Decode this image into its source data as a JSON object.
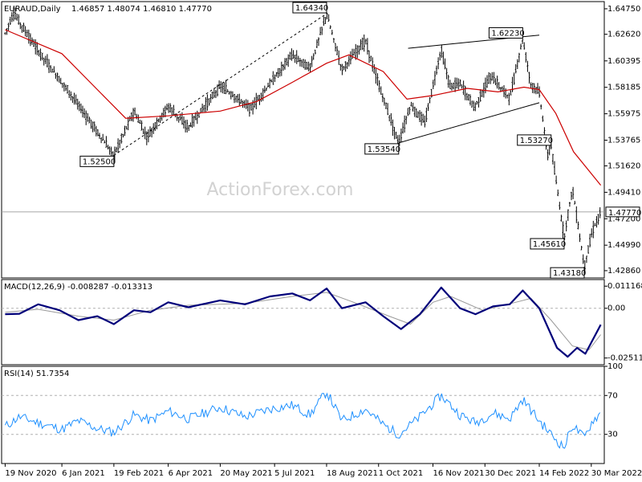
{
  "chart_data": [
    {
      "type": "candlestick",
      "title": "EURAUD,Daily",
      "ohlc_header": "1.46857 1.48074 1.46810 1.47770",
      "watermark": "ActionForex.com",
      "ylim": [
        1.4225,
        1.6535
      ],
      "yticks": [
        1.6475,
        1.6262,
        1.60395,
        1.58185,
        1.55975,
        1.53765,
        1.5162,
        1.4941,
        1.472,
        1.4499,
        1.4286
      ],
      "ytick_labels": [
        "1.64750",
        "1.62620",
        "1.60395",
        "1.58185",
        "1.55975",
        "1.53765",
        "1.51620",
        "1.49410",
        "1.47200",
        "1.44990",
        "1.42860"
      ],
      "current_price": 1.4777,
      "current_price_label": "1.47770",
      "x_dates": [
        "19 Nov 2020",
        "6 Jan 2021",
        "19 Feb 2021",
        "6 Apr 2021",
        "20 May 2021",
        "5 Jul 2021",
        "18 Aug 2021",
        "1 Oct 2021",
        "16 Nov 2021",
        "30 Dec 2021",
        "14 Feb 2022",
        "30 Mar 2022"
      ],
      "pivots": [
        {
          "date": "2020-11-19",
          "value": 1.627
        },
        {
          "date": "2020-11-26",
          "value": 1.644
        },
        {
          "date": "2020-12-17",
          "value": 1.612
        },
        {
          "date": "2021-01-12",
          "value": 1.578
        },
        {
          "date": "2021-02-19",
          "value": 1.525
        },
        {
          "date": "2021-03-08",
          "value": 1.562
        },
        {
          "date": "2021-03-19",
          "value": 1.54
        },
        {
          "date": "2021-04-06",
          "value": 1.566
        },
        {
          "date": "2021-04-23",
          "value": 1.548
        },
        {
          "date": "2021-05-20",
          "value": 1.583
        },
        {
          "date": "2021-06-15",
          "value": 1.564
        },
        {
          "date": "2021-07-05",
          "value": 1.59
        },
        {
          "date": "2021-07-20",
          "value": 1.609
        },
        {
          "date": "2021-08-04",
          "value": 1.598
        },
        {
          "date": "2021-08-18",
          "value": 1.6434
        },
        {
          "date": "2021-08-31",
          "value": 1.597
        },
        {
          "date": "2021-09-20",
          "value": 1.621
        },
        {
          "date": "2021-09-28",
          "value": 1.593
        },
        {
          "date": "2021-10-18",
          "value": 1.5354
        },
        {
          "date": "2021-10-28",
          "value": 1.567
        },
        {
          "date": "2021-11-09",
          "value": 1.552
        },
        {
          "date": "2021-11-23",
          "value": 1.614
        },
        {
          "date": "2021-11-30",
          "value": 1.583
        },
        {
          "date": "2021-12-09",
          "value": 1.585
        },
        {
          "date": "2021-12-21",
          "value": 1.565
        },
        {
          "date": "2022-01-04",
          "value": 1.591
        },
        {
          "date": "2022-01-20",
          "value": 1.573
        },
        {
          "date": "2022-01-31",
          "value": 1.6223
        },
        {
          "date": "2022-02-07",
          "value": 1.584
        },
        {
          "date": "2022-02-14",
          "value": 1.578
        },
        {
          "date": "2022-02-21",
          "value": 1.525
        },
        {
          "date": "2022-02-24",
          "value": 1.5327
        },
        {
          "date": "2022-03-07",
          "value": 1.4561
        },
        {
          "date": "2022-03-14",
          "value": 1.498
        },
        {
          "date": "2022-03-21",
          "value": 1.452
        },
        {
          "date": "2022-03-24",
          "value": 1.4318
        },
        {
          "date": "2022-03-31",
          "value": 1.462
        },
        {
          "date": "2022-04-07",
          "value": 1.4777
        }
      ],
      "moving_average": [
        {
          "date": "2020-11-19",
          "value": 1.63
        },
        {
          "date": "2021-01-06",
          "value": 1.61
        },
        {
          "date": "2021-02-10",
          "value": 1.575
        },
        {
          "date": "2021-03-01",
          "value": 1.556
        },
        {
          "date": "2021-04-06",
          "value": 1.558
        },
        {
          "date": "2021-05-20",
          "value": 1.562
        },
        {
          "date": "2021-06-20",
          "value": 1.57
        },
        {
          "date": "2021-07-20",
          "value": 1.586
        },
        {
          "date": "2021-08-18",
          "value": 1.602
        },
        {
          "date": "2021-09-06",
          "value": 1.609
        },
        {
          "date": "2021-10-05",
          "value": 1.595
        },
        {
          "date": "2021-10-25",
          "value": 1.572
        },
        {
          "date": "2021-11-16",
          "value": 1.575
        },
        {
          "date": "2021-12-15",
          "value": 1.581
        },
        {
          "date": "2022-01-10",
          "value": 1.578
        },
        {
          "date": "2022-02-01",
          "value": 1.582
        },
        {
          "date": "2022-02-14",
          "value": 1.58
        },
        {
          "date": "2022-02-28",
          "value": 1.56
        },
        {
          "date": "2022-03-15",
          "value": 1.528
        },
        {
          "date": "2022-04-07",
          "value": 1.5
        }
      ],
      "trendlines": [
        {
          "style": "dashed",
          "points": [
            {
              "date": "2021-02-19",
              "value": 1.525
            },
            {
              "date": "2021-08-18",
              "value": 1.6434
            }
          ]
        },
        {
          "style": "solid",
          "points": [
            {
              "date": "2021-10-26",
              "value": 1.6145
            },
            {
              "date": "2022-02-14",
              "value": 1.6255
            }
          ]
        },
        {
          "style": "solid",
          "points": [
            {
              "date": "2021-10-18",
              "value": 1.5354
            },
            {
              "date": "2022-02-14",
              "value": 1.569
            }
          ]
        }
      ],
      "annotations": [
        {
          "label": "1.64340",
          "date": "2021-08-18",
          "value": 1.6434,
          "anchor": "end",
          "side": "top"
        },
        {
          "label": "1.52500",
          "date": "2021-02-19",
          "value": 1.525,
          "anchor": "end",
          "side": "bottom"
        },
        {
          "label": "1.53540",
          "date": "2021-10-18",
          "value": 1.5354,
          "anchor": "end",
          "side": "bottom"
        },
        {
          "label": "1.62230",
          "date": "2022-01-31",
          "value": 1.6223,
          "anchor": "end",
          "side": "top"
        },
        {
          "label": "1.53270",
          "date": "2022-02-24",
          "value": 1.5327,
          "anchor": "end",
          "side": "top"
        },
        {
          "label": "1.45610",
          "date": "2022-03-07",
          "value": 1.4561,
          "anchor": "end",
          "side": "bottom"
        },
        {
          "label": "1.43180",
          "date": "2022-03-24",
          "value": 1.4318,
          "anchor": "end",
          "side": "bottom"
        }
      ],
      "colors": {
        "price": "#000000",
        "moving_average": "#cc0000",
        "current_price_line": "#9a9a9a"
      }
    },
    {
      "type": "line",
      "title": "MACD(12,26,9) -0.008287 -0.013313",
      "ylim": [
        -0.0285,
        0.0145
      ],
      "yticks": [
        0.011168,
        0.0,
        -0.025117
      ],
      "ytick_labels": [
        "0.011168",
        "0.00",
        "-0.025117"
      ],
      "series": [
        {
          "color": "#00007a",
          "points": [
            {
              "date": "2020-11-19",
              "value": -0.003
            },
            {
              "date": "2020-12-01",
              "value": -0.0028
            },
            {
              "date": "2020-12-17",
              "value": 0.002
            },
            {
              "date": "2021-01-04",
              "value": -0.001
            },
            {
              "date": "2021-01-20",
              "value": -0.006
            },
            {
              "date": "2021-02-05",
              "value": -0.004
            },
            {
              "date": "2021-02-19",
              "value": -0.008
            },
            {
              "date": "2021-03-08",
              "value": -0.001
            },
            {
              "date": "2021-03-22",
              "value": -0.002
            },
            {
              "date": "2021-04-06",
              "value": 0.003
            },
            {
              "date": "2021-04-23",
              "value": 0.0005
            },
            {
              "date": "2021-05-20",
              "value": 0.004
            },
            {
              "date": "2021-06-10",
              "value": 0.002
            },
            {
              "date": "2021-07-01",
              "value": 0.006
            },
            {
              "date": "2021-07-20",
              "value": 0.0075
            },
            {
              "date": "2021-08-04",
              "value": 0.004
            },
            {
              "date": "2021-08-18",
              "value": 0.01
            },
            {
              "date": "2021-08-31",
              "value": 0.0
            },
            {
              "date": "2021-09-20",
              "value": 0.003
            },
            {
              "date": "2021-10-05",
              "value": -0.004
            },
            {
              "date": "2021-10-20",
              "value": -0.0105
            },
            {
              "date": "2021-11-05",
              "value": -0.003
            },
            {
              "date": "2021-11-23",
              "value": 0.0105
            },
            {
              "date": "2021-12-09",
              "value": 0.0
            },
            {
              "date": "2021-12-22",
              "value": -0.003
            },
            {
              "date": "2022-01-06",
              "value": 0.001
            },
            {
              "date": "2022-01-20",
              "value": 0.002
            },
            {
              "date": "2022-01-31",
              "value": 0.009
            },
            {
              "date": "2022-02-14",
              "value": 0.0
            },
            {
              "date": "2022-03-01",
              "value": -0.02
            },
            {
              "date": "2022-03-10",
              "value": -0.0245
            },
            {
              "date": "2022-03-18",
              "value": -0.02
            },
            {
              "date": "2022-03-25",
              "value": -0.023
            },
            {
              "date": "2022-04-07",
              "value": -0.0083
            }
          ]
        },
        {
          "color": "#9a9a9a",
          "points": [
            {
              "date": "2020-11-19",
              "value": -0.002
            },
            {
              "date": "2020-12-17",
              "value": -0.0005
            },
            {
              "date": "2021-01-20",
              "value": -0.004
            },
            {
              "date": "2021-02-19",
              "value": -0.006
            },
            {
              "date": "2021-03-22",
              "value": -0.001
            },
            {
              "date": "2021-04-23",
              "value": 0.0015
            },
            {
              "date": "2021-06-10",
              "value": 0.0025
            },
            {
              "date": "2021-07-20",
              "value": 0.006
            },
            {
              "date": "2021-08-18",
              "value": 0.008
            },
            {
              "date": "2021-09-10",
              "value": 0.003
            },
            {
              "date": "2021-10-10",
              "value": -0.004
            },
            {
              "date": "2021-10-28",
              "value": -0.008
            },
            {
              "date": "2021-11-16",
              "value": 0.003
            },
            {
              "date": "2021-12-01",
              "value": 0.006
            },
            {
              "date": "2021-12-28",
              "value": -0.001
            },
            {
              "date": "2022-01-25",
              "value": 0.003
            },
            {
              "date": "2022-02-07",
              "value": 0.005
            },
            {
              "date": "2022-02-24",
              "value": -0.006
            },
            {
              "date": "2022-03-14",
              "value": -0.019
            },
            {
              "date": "2022-03-28",
              "value": -0.021
            },
            {
              "date": "2022-04-07",
              "value": -0.0133
            }
          ]
        }
      ]
    },
    {
      "type": "line",
      "title": "RSI(14) 51.7354",
      "ylim": [
        0,
        100
      ],
      "yticks": [
        100,
        70,
        30,
        0
      ],
      "ytick_labels": [
        "100",
        "70",
        "30",
        "0"
      ],
      "series": [
        {
          "color": "#1e90ff",
          "points": [
            {
              "date": "2020-11-19",
              "value": 38
            },
            {
              "date": "2020-12-01",
              "value": 48
            },
            {
              "date": "2020-12-17",
              "value": 42
            },
            {
              "date": "2021-01-06",
              "value": 35
            },
            {
              "date": "2021-01-20",
              "value": 44
            },
            {
              "date": "2021-02-05",
              "value": 36
            },
            {
              "date": "2021-02-19",
              "value": 32
            },
            {
              "date": "2021-03-08",
              "value": 50
            },
            {
              "date": "2021-03-22",
              "value": 44
            },
            {
              "date": "2021-04-06",
              "value": 54
            },
            {
              "date": "2021-04-23",
              "value": 46
            },
            {
              "date": "2021-05-20",
              "value": 58
            },
            {
              "date": "2021-06-10",
              "value": 48
            },
            {
              "date": "2021-07-01",
              "value": 56
            },
            {
              "date": "2021-07-20",
              "value": 60
            },
            {
              "date": "2021-08-04",
              "value": 50
            },
            {
              "date": "2021-08-18",
              "value": 74
            },
            {
              "date": "2021-08-31",
              "value": 44
            },
            {
              "date": "2021-09-20",
              "value": 56
            },
            {
              "date": "2021-10-05",
              "value": 40
            },
            {
              "date": "2021-10-18",
              "value": 30
            },
            {
              "date": "2021-11-05",
              "value": 48
            },
            {
              "date": "2021-11-23",
              "value": 70
            },
            {
              "date": "2021-12-09",
              "value": 50
            },
            {
              "date": "2021-12-22",
              "value": 42
            },
            {
              "date": "2022-01-06",
              "value": 52
            },
            {
              "date": "2022-01-20",
              "value": 46
            },
            {
              "date": "2022-01-31",
              "value": 66
            },
            {
              "date": "2022-02-14",
              "value": 44
            },
            {
              "date": "2022-02-24",
              "value": 30
            },
            {
              "date": "2022-03-07",
              "value": 16
            },
            {
              "date": "2022-03-14",
              "value": 40
            },
            {
              "date": "2022-03-24",
              "value": 26
            },
            {
              "date": "2022-03-31",
              "value": 44
            },
            {
              "date": "2022-04-07",
              "value": 51.7
            }
          ]
        }
      ]
    }
  ]
}
